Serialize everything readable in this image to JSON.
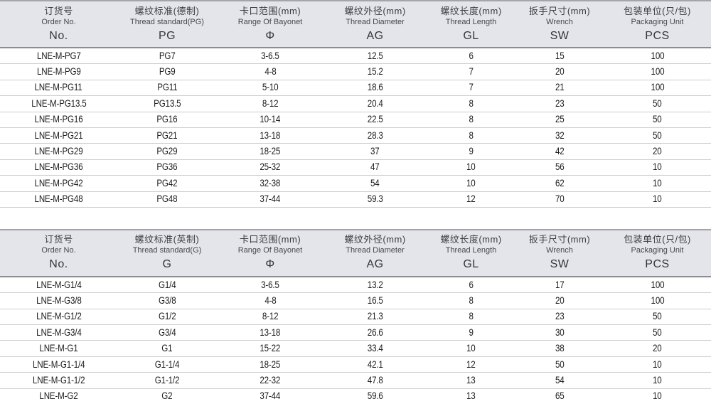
{
  "colors": {
    "header_bg": "#e3e5ea",
    "header_top_border": "#a3a5a8",
    "header_bottom_border": "#8b8d90",
    "row_divider": "#cdcdcd",
    "header_text": "#3c3e40",
    "cell_text": "#1c1c1c"
  },
  "tables": [
    {
      "name": "pg-thread-spec-table",
      "columns": [
        {
          "zh": "订货号",
          "en": "Order No.",
          "code": "No."
        },
        {
          "zh": "螺纹标准(德制)",
          "en": "Thread standard(PG)",
          "code": "PG"
        },
        {
          "zh": "卡口范围(mm)",
          "en": "Range Of Bayonet",
          "code": "Φ"
        },
        {
          "zh": "螺纹外径(mm)",
          "en": "Thread Diameter",
          "code": "AG"
        },
        {
          "zh": "螺纹长度(mm)",
          "en": "Thread Length",
          "code": "GL"
        },
        {
          "zh": "扳手尺寸(mm)",
          "en": "Wrench",
          "code": "SW"
        },
        {
          "zh": "包装单位(只/包)",
          "en": "Packaging Unit",
          "code": "PCS"
        }
      ],
      "rows": [
        [
          "LNE-M-PG7",
          "PG7",
          "3-6.5",
          "12.5",
          "6",
          "15",
          "100"
        ],
        [
          "LNE-M-PG9",
          "PG9",
          "4-8",
          "15.2",
          "7",
          "20",
          "100"
        ],
        [
          "LNE-M-PG11",
          "PG11",
          "5-10",
          "18.6",
          "7",
          "21",
          "100"
        ],
        [
          "LNE-M-PG13.5",
          "PG13.5",
          "8-12",
          "20.4",
          "8",
          "23",
          "50"
        ],
        [
          "LNE-M-PG16",
          "PG16",
          "10-14",
          "22.5",
          "8",
          "25",
          "50"
        ],
        [
          "LNE-M-PG21",
          "PG21",
          "13-18",
          "28.3",
          "8",
          "32",
          "50"
        ],
        [
          "LNE-M-PG29",
          "PG29",
          "18-25",
          "37",
          "9",
          "42",
          "20"
        ],
        [
          "LNE-M-PG36",
          "PG36",
          "25-32",
          "47",
          "10",
          "56",
          "10"
        ],
        [
          "LNE-M-PG42",
          "PG42",
          "32-38",
          "54",
          "10",
          "62",
          "10"
        ],
        [
          "LNE-M-PG48",
          "PG48",
          "37-44",
          "59.3",
          "12",
          "70",
          "10"
        ]
      ]
    },
    {
      "name": "g-thread-spec-table",
      "columns": [
        {
          "zh": "订货号",
          "en": "Order No.",
          "code": "No."
        },
        {
          "zh": "螺纹标准(英制)",
          "en": "Thread standard(G)",
          "code": "G"
        },
        {
          "zh": "卡口范围(mm)",
          "en": "Range Of Bayonet",
          "code": "Φ"
        },
        {
          "zh": "螺纹外径(mm)",
          "en": "Thread Diameter",
          "code": "AG"
        },
        {
          "zh": "螺纹长度(mm)",
          "en": "Thread Length",
          "code": "GL"
        },
        {
          "zh": "扳手尺寸(mm)",
          "en": "Wrench",
          "code": "SW"
        },
        {
          "zh": "包装单位(只/包)",
          "en": "Packaging Unit",
          "code": "PCS"
        }
      ],
      "rows": [
        [
          "LNE-M-G1/4",
          "G1/4",
          "3-6.5",
          "13.2",
          "6",
          "17",
          "100"
        ],
        [
          "LNE-M-G3/8",
          "G3/8",
          "4-8",
          "16.5",
          "8",
          "20",
          "100"
        ],
        [
          "LNE-M-G1/2",
          "G1/2",
          "8-12",
          "21.3",
          "8",
          "23",
          "50"
        ],
        [
          "LNE-M-G3/4",
          "G3/4",
          "13-18",
          "26.6",
          "9",
          "30",
          "50"
        ],
        [
          "LNE-M-G1",
          "G1",
          "15-22",
          "33.4",
          "10",
          "38",
          "20"
        ],
        [
          "LNE-M-G1-1/4",
          "G1-1/4",
          "18-25",
          "42.1",
          "12",
          "50",
          "10"
        ],
        [
          "LNE-M-G1-1/2",
          "G1-1/2",
          "22-32",
          "47.8",
          "13",
          "54",
          "10"
        ],
        [
          "LNE-M-G2",
          "G2",
          "37-44",
          "59.6",
          "13",
          "65",
          "10"
        ]
      ]
    }
  ]
}
